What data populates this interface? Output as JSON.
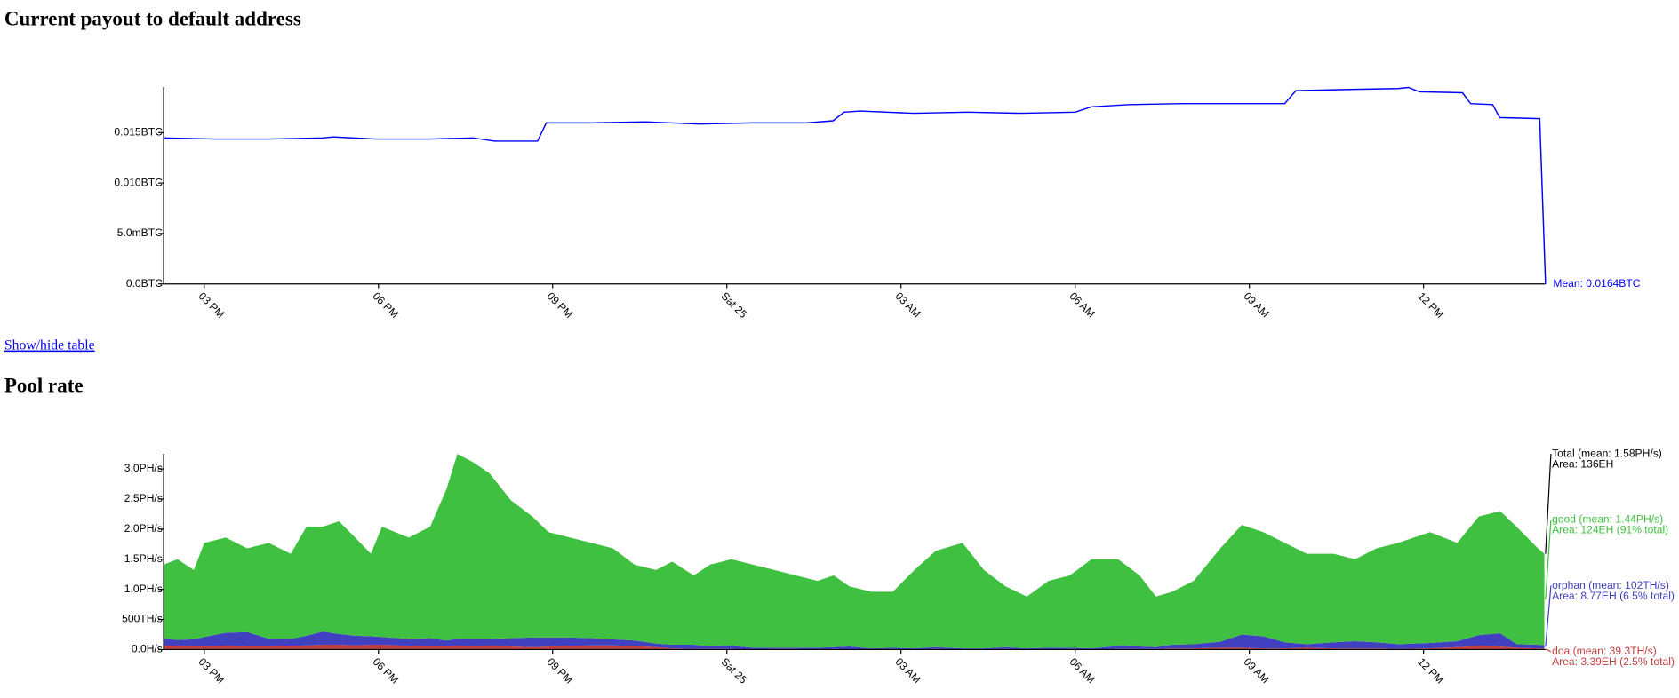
{
  "link": "Show/hide table",
  "chart_data": [
    {
      "type": "line",
      "title": "Current payout to default address",
      "x": [
        14.3,
        15.19,
        16.11,
        17.04,
        17.22,
        17.96,
        18.89,
        19.63,
        20.0,
        20.74,
        20.89,
        21.67,
        22.59,
        23.52,
        24.44,
        25.37,
        25.83,
        26.02,
        26.3,
        27.22,
        28.15,
        29.07,
        30.0,
        30.28,
        30.93,
        31.85,
        32.78,
        33.61,
        33.8,
        34.63,
        35.56,
        35.74,
        35.93,
        36.67,
        36.81,
        37.19,
        37.31,
        38.0,
        38.1
      ],
      "values": [
        0.01447,
        0.01436,
        0.01436,
        0.01447,
        0.01457,
        0.01436,
        0.01436,
        0.01447,
        0.01415,
        0.01415,
        0.01596,
        0.01596,
        0.01606,
        0.01585,
        0.01596,
        0.01596,
        0.01617,
        0.01702,
        0.01713,
        0.01691,
        0.01702,
        0.01691,
        0.01702,
        0.01755,
        0.01777,
        0.01787,
        0.01787,
        0.01787,
        0.01915,
        0.01926,
        0.01936,
        0.01947,
        0.01904,
        0.01894,
        0.01787,
        0.01777,
        0.01649,
        0.01638,
        0
      ],
      "color": "#0000ff",
      "annotation": "Mean: 0.0164BTC",
      "xlim": [
        14.3,
        38.1
      ],
      "xticks": [
        {
          "value": 15,
          "label": "03 PM"
        },
        {
          "value": 18,
          "label": "06 PM"
        },
        {
          "value": 21,
          "label": "09 PM"
        },
        {
          "value": 24,
          "label": "Sat 25"
        },
        {
          "value": 27,
          "label": "03 AM"
        },
        {
          "value": 30,
          "label": "06 AM"
        },
        {
          "value": 33,
          "label": "09 AM"
        },
        {
          "value": 36,
          "label": "12 PM"
        }
      ],
      "ylim": [
        0,
        0.0195
      ],
      "yticks": [
        {
          "value": 0,
          "label": "0.0BTC"
        },
        {
          "value": 0.005,
          "label": "5.0mBTC"
        },
        {
          "value": 0.01,
          "label": "0.010BTC"
        },
        {
          "value": 0.015,
          "label": "0.015BTC"
        }
      ]
    },
    {
      "type": "area",
      "stacked": true,
      "title": "Pool rate",
      "x": [
        14.3,
        14.54,
        14.82,
        15.0,
        15.37,
        15.74,
        16.11,
        16.49,
        16.76,
        17.04,
        17.32,
        17.6,
        17.87,
        18.06,
        18.52,
        18.89,
        19.17,
        19.36,
        19.63,
        19.91,
        20.28,
        20.65,
        20.93,
        21.3,
        21.67,
        22.04,
        22.41,
        22.78,
        23.06,
        23.43,
        23.71,
        24.08,
        24.45,
        24.82,
        25.19,
        25.56,
        25.84,
        26.11,
        26.49,
        26.86,
        27.23,
        27.6,
        28.06,
        28.43,
        28.8,
        29.17,
        29.54,
        29.91,
        30.28,
        30.74,
        31.11,
        31.39,
        31.67,
        32.04,
        32.5,
        32.87,
        33.24,
        33.61,
        33.99,
        34.45,
        34.82,
        35.19,
        35.56,
        36.11,
        36.58,
        36.95,
        37.32,
        37.6,
        37.97,
        38.08
      ],
      "series": [
        {
          "name": "doa (mean: 39.3TH/s)",
          "area": "Area: 3.39EH (2.5% total)",
          "color": "#c04040",
          "values": [
            0.06,
            0.06,
            0.05,
            0.05,
            0.06,
            0.05,
            0.05,
            0.06,
            0.07,
            0.08,
            0.08,
            0.07,
            0.08,
            0.08,
            0.06,
            0.05,
            0.05,
            0.06,
            0.05,
            0.06,
            0.05,
            0.04,
            0.05,
            0.06,
            0.07,
            0.07,
            0.06,
            0.04,
            0.02,
            0.01,
            0.01,
            0.01,
            0,
            0.01,
            0.01,
            0,
            0.01,
            0,
            0,
            0.01,
            0,
            0.01,
            0,
            0,
            0.01,
            0,
            0,
            0.01,
            0,
            0.01,
            0.01,
            0.01,
            0.02,
            0.02,
            0.03,
            0.03,
            0.02,
            0.02,
            0.03,
            0.02,
            0.02,
            0.02,
            0.01,
            0.02,
            0.04,
            0.06,
            0.05,
            0.03,
            0.02,
            0.02
          ]
        },
        {
          "name": "orphan (mean: 102TH/s)",
          "area": "Area: 8.77EH (6.5% total)",
          "color": "#4040c0",
          "values": [
            0.12,
            0.1,
            0.12,
            0.16,
            0.22,
            0.24,
            0.13,
            0.12,
            0.16,
            0.22,
            0.18,
            0.16,
            0.14,
            0.13,
            0.12,
            0.14,
            0.1,
            0.12,
            0.13,
            0.12,
            0.14,
            0.16,
            0.15,
            0.14,
            0.12,
            0.1,
            0.09,
            0.06,
            0.06,
            0.07,
            0.04,
            0.05,
            0.03,
            0.02,
            0.02,
            0.03,
            0.03,
            0.05,
            0.02,
            0.02,
            0.02,
            0.03,
            0.02,
            0.02,
            0.03,
            0.02,
            0.03,
            0.02,
            0.02,
            0.05,
            0.04,
            0.03,
            0.06,
            0.07,
            0.1,
            0.22,
            0.2,
            0.1,
            0.06,
            0.1,
            0.12,
            0.1,
            0.08,
            0.09,
            0.1,
            0.18,
            0.22,
            0.06,
            0.06,
            0.05
          ]
        },
        {
          "name": "good (mean: 1.44PH/s)",
          "area": "Area: 124EH (91% total)",
          "color": "#40c040",
          "values": [
            1.23,
            1.34,
            1.15,
            1.56,
            1.58,
            1.39,
            1.59,
            1.41,
            1.81,
            1.74,
            1.87,
            1.63,
            1.37,
            1.83,
            1.68,
            1.85,
            2.51,
            3.07,
            2.93,
            2.75,
            2.29,
            2.01,
            1.75,
            1.66,
            1.58,
            1.51,
            1.26,
            1.22,
            1.38,
            1.15,
            1.36,
            1.44,
            1.38,
            1.29,
            1.2,
            1.11,
            1.19,
            1.0,
            0.94,
            0.93,
            1.3,
            1.6,
            1.75,
            1.3,
            1.01,
            0.86,
            1.11,
            1.2,
            1.48,
            1.44,
            1.18,
            0.84,
            0.88,
            1.05,
            1.55,
            1.82,
            1.73,
            1.65,
            1.5,
            1.47,
            1.36,
            1.56,
            1.68,
            1.84,
            1.63,
            1.97,
            2.03,
            1.95,
            1.6,
            1.52
          ]
        }
      ],
      "total": {
        "name": "Total (mean: 1.58PH/s)",
        "area": "Area: 136EH",
        "color": "#000000"
      },
      "xlim": [
        14.3,
        38.1
      ],
      "xticks": [
        {
          "value": 15,
          "label": "03 PM"
        },
        {
          "value": 18,
          "label": "06 PM"
        },
        {
          "value": 21,
          "label": "09 PM"
        },
        {
          "value": 24,
          "label": "Sat 25"
        },
        {
          "value": 27,
          "label": "03 AM"
        },
        {
          "value": 30,
          "label": "06 AM"
        },
        {
          "value": 33,
          "label": "09 AM"
        },
        {
          "value": 36,
          "label": "12 PM"
        }
      ],
      "ylim": [
        0,
        3.25
      ],
      "yticks": [
        {
          "value": 0,
          "label": "0.0H/s"
        },
        {
          "value": 0.5,
          "label": "500TH/s"
        },
        {
          "value": 1,
          "label": "1.0PH/s"
        },
        {
          "value": 1.5,
          "label": "1.5PH/s"
        },
        {
          "value": 2,
          "label": "2.0PH/s"
        },
        {
          "value": 2.5,
          "label": "2.5PH/s"
        },
        {
          "value": 3,
          "label": "3.0PH/s"
        }
      ]
    }
  ]
}
